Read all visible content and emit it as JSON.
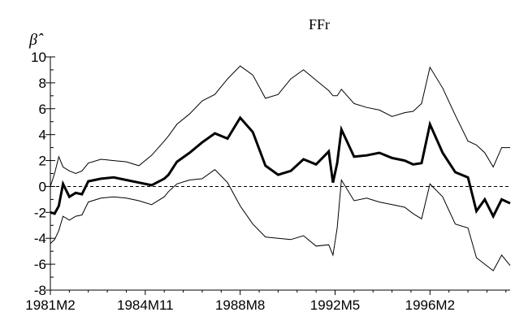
{
  "chart_data": {
    "type": "line",
    "title": "FFr",
    "ylabel": "β̂",
    "xlabel": "",
    "ylim": [
      -8,
      10
    ],
    "y_ticks": [
      10,
      8,
      6,
      4,
      2,
      0,
      -2,
      -4,
      -6,
      -8
    ],
    "x_tick_labels": [
      "1981M2",
      "1984M11",
      "1988M8",
      "1992M5",
      "1996M2"
    ],
    "x_tick_positions": [
      0,
      45,
      90,
      135,
      180
    ],
    "x_range": [
      0,
      218
    ],
    "zero_line": "dashed",
    "grid": false,
    "legend": "none",
    "x": [
      0,
      2,
      4,
      6,
      9,
      12,
      15,
      18,
      24,
      30,
      36,
      42,
      48,
      54,
      56,
      60,
      66,
      72,
      78,
      84,
      90,
      96,
      102,
      108,
      114,
      120,
      126,
      132,
      134,
      136,
      138,
      144,
      150,
      156,
      162,
      168,
      172,
      176,
      180,
      186,
      192,
      198,
      202,
      206,
      210,
      214,
      218
    ],
    "series": [
      {
        "values": [
          -2.0,
          -2.1,
          -1.5,
          0.2,
          -0.8,
          -0.5,
          -0.6,
          0.4,
          0.6,
          0.7,
          0.5,
          0.3,
          0.1,
          0.6,
          0.9,
          1.9,
          2.6,
          3.4,
          4.1,
          3.7,
          5.3,
          4.2,
          1.6,
          0.9,
          1.2,
          2.1,
          1.7,
          2.7,
          0.3,
          1.8,
          4.4,
          2.3,
          2.4,
          2.6,
          2.2,
          2.0,
          1.7,
          1.8,
          4.8,
          2.6,
          1.1,
          0.7,
          -1.9,
          -1.0,
          -2.3,
          -1.0,
          -1.3
        ],
        "style": "thick"
      },
      {
        "values": [
          0.0,
          1.0,
          2.3,
          1.5,
          1.2,
          1.0,
          1.2,
          1.8,
          2.1,
          2.0,
          1.9,
          1.6,
          2.4,
          3.5,
          3.9,
          4.8,
          5.6,
          6.6,
          7.1,
          8.3,
          9.3,
          8.6,
          6.8,
          7.1,
          8.3,
          9.0,
          8.2,
          7.4,
          7.0,
          7.0,
          7.5,
          6.4,
          6.1,
          5.9,
          5.4,
          5.7,
          5.8,
          6.4,
          9.2,
          7.6,
          5.5,
          3.5,
          3.2,
          2.6,
          1.5,
          3.0,
          3.0
        ],
        "style": "thin"
      },
      {
        "values": [
          -4.4,
          -4.1,
          -3.4,
          -2.3,
          -2.6,
          -2.3,
          -2.2,
          -1.2,
          -0.9,
          -0.8,
          -0.9,
          -1.1,
          -1.4,
          -0.8,
          -0.4,
          0.2,
          0.5,
          0.6,
          1.3,
          0.3,
          -1.5,
          -2.9,
          -3.9,
          -4.0,
          -4.1,
          -3.8,
          -4.6,
          -4.5,
          -5.3,
          -3.2,
          0.5,
          -1.1,
          -0.9,
          -1.2,
          -1.4,
          -1.6,
          -2.1,
          -2.5,
          0.2,
          -0.8,
          -2.9,
          -3.2,
          -5.5,
          -6.0,
          -6.5,
          -5.3,
          -6.1
        ],
        "style": "thin"
      }
    ]
  }
}
